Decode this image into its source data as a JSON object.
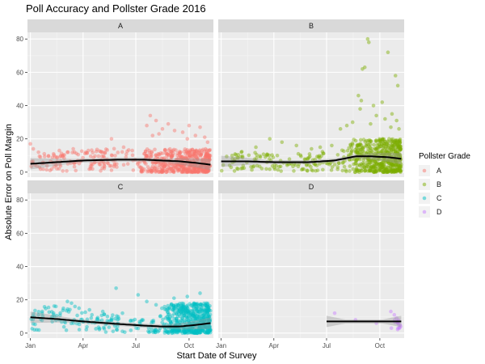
{
  "chart_data": {
    "type": "scatter",
    "title": "Poll Accuracy and Pollster Grade 2016",
    "xlabel": "Start Date of Survey",
    "ylabel": "Absolute Error on Poll Margin",
    "x_range": [
      "2015-12-27",
      "2016-11-12"
    ],
    "x_ticks": [
      {
        "date": "2016-01-01",
        "label": "Jan"
      },
      {
        "date": "2016-04-01",
        "label": "Apr"
      },
      {
        "date": "2016-07-01",
        "label": "Jul"
      },
      {
        "date": "2016-10-01",
        "label": "Oct"
      }
    ],
    "ylim": [
      -3,
      84
    ],
    "y_ticks": [
      0,
      20,
      40,
      60,
      80
    ],
    "y_minor_ticks": [
      10,
      30,
      50,
      70
    ],
    "grid": true,
    "facet_by": "Pollster Grade",
    "legend": {
      "title": "Pollster Grade",
      "position": "right",
      "items": [
        {
          "label": "A",
          "color": "#F8766D"
        },
        {
          "label": "B",
          "color": "#7CAE00"
        },
        {
          "label": "C",
          "color": "#00BFC4"
        },
        {
          "label": "D",
          "color": "#C77CFF"
        }
      ]
    },
    "panels": [
      {
        "label": "A",
        "color": "#F8766D",
        "dense_start": "2016-07-01",
        "dense_end": "2016-11-07",
        "dense_y_typical": [
          0,
          14
        ],
        "smooth": [
          [
            "2016-01-01",
            5
          ],
          [
            "2016-02-15",
            6
          ],
          [
            "2016-04-01",
            7
          ],
          [
            "2016-06-01",
            7.5
          ],
          [
            "2016-07-15",
            7.5
          ],
          [
            "2016-08-15",
            7
          ],
          [
            "2016-09-15",
            6.5
          ],
          [
            "2016-10-15",
            5.5
          ],
          [
            "2016-11-07",
            4.5
          ]
        ],
        "outliers": [
          [
            "2016-01-01",
            17
          ],
          [
            "2016-01-06",
            14
          ],
          [
            "2016-01-15",
            12
          ],
          [
            "2016-01-25",
            11
          ],
          [
            "2016-02-10",
            11
          ],
          [
            "2016-02-20",
            13
          ],
          [
            "2016-03-05",
            12
          ],
          [
            "2016-03-15",
            14
          ],
          [
            "2016-04-10",
            13
          ],
          [
            "2016-05-05",
            12
          ],
          [
            "2016-05-20",
            20
          ],
          [
            "2016-06-10",
            15
          ],
          [
            "2016-06-25",
            13
          ],
          [
            "2016-07-20",
            28
          ],
          [
            "2016-07-26",
            34
          ],
          [
            "2016-08-05",
            31
          ],
          [
            "2016-08-16",
            26
          ],
          [
            "2016-08-26",
            29
          ],
          [
            "2016-09-06",
            25
          ],
          [
            "2016-09-20",
            24
          ],
          [
            "2016-10-01",
            28
          ],
          [
            "2016-10-12",
            22
          ],
          [
            "2016-10-20",
            27
          ],
          [
            "2016-10-28",
            21
          ],
          [
            "2016-11-02",
            18
          ],
          [
            "2016-08-10",
            23
          ],
          [
            "2016-09-28",
            20
          ],
          [
            "2016-07-30",
            22
          ]
        ]
      },
      {
        "label": "B",
        "color": "#7CAE00",
        "dense_start": "2016-08-01",
        "dense_end": "2016-11-07",
        "dense_y_typical": [
          0,
          20
        ],
        "smooth": [
          [
            "2016-01-01",
            6.5
          ],
          [
            "2016-02-15",
            6.5
          ],
          [
            "2016-04-01",
            6
          ],
          [
            "2016-06-01",
            6
          ],
          [
            "2016-07-15",
            7
          ],
          [
            "2016-08-20",
            9.5
          ],
          [
            "2016-09-15",
            9.5
          ],
          [
            "2016-10-15",
            9
          ],
          [
            "2016-11-07",
            8
          ]
        ],
        "outliers": [
          [
            "2016-09-10",
            80
          ],
          [
            "2016-09-12",
            78
          ],
          [
            "2016-10-15",
            72
          ],
          [
            "2016-09-05",
            63
          ],
          [
            "2016-09-01",
            62
          ],
          [
            "2016-10-28",
            58
          ],
          [
            "2016-11-01",
            52
          ],
          [
            "2016-08-25",
            46
          ],
          [
            "2016-08-28",
            38
          ],
          [
            "2016-09-20",
            40
          ],
          [
            "2016-10-05",
            42
          ],
          [
            "2016-08-30",
            43
          ],
          [
            "2016-10-22",
            35
          ],
          [
            "2016-09-25",
            34
          ],
          [
            "2016-10-10",
            32
          ],
          [
            "2016-10-30",
            31
          ],
          [
            "2016-08-15",
            30
          ],
          [
            "2016-09-15",
            29
          ],
          [
            "2016-08-05",
            28
          ],
          [
            "2016-07-25",
            26
          ],
          [
            "2016-10-20",
            27
          ],
          [
            "2016-11-03",
            26
          ],
          [
            "2016-03-25",
            20
          ],
          [
            "2016-04-15",
            18
          ],
          [
            "2016-05-10",
            16
          ],
          [
            "2016-06-05",
            14
          ],
          [
            "2016-03-01",
            15
          ],
          [
            "2016-02-05",
            12
          ],
          [
            "2016-01-20",
            10
          ],
          [
            "2016-06-20",
            15
          ],
          [
            "2016-07-10",
            16
          ]
        ]
      },
      {
        "label": "C",
        "color": "#00BFC4",
        "dense_start": "2016-08-10",
        "dense_end": "2016-11-07",
        "dense_y_typical": [
          0,
          18
        ],
        "smooth": [
          [
            "2016-01-01",
            9.5
          ],
          [
            "2016-02-15",
            8.5
          ],
          [
            "2016-04-01",
            7
          ],
          [
            "2016-06-01",
            5.5
          ],
          [
            "2016-07-15",
            4.5
          ],
          [
            "2016-08-15",
            4
          ],
          [
            "2016-09-15",
            4
          ],
          [
            "2016-10-15",
            5
          ],
          [
            "2016-11-07",
            6
          ]
        ],
        "outliers": [
          [
            "2016-05-28",
            27
          ],
          [
            "2016-03-05",
            19
          ],
          [
            "2016-03-12",
            18
          ],
          [
            "2016-03-18",
            16
          ],
          [
            "2016-03-25",
            15
          ],
          [
            "2016-04-12",
            14
          ],
          [
            "2016-05-05",
            13
          ],
          [
            "2016-06-08",
            12
          ],
          [
            "2016-07-05",
            23
          ],
          [
            "2016-07-20",
            19
          ],
          [
            "2016-08-05",
            17
          ],
          [
            "2016-09-05",
            21
          ],
          [
            "2016-09-28",
            22
          ],
          [
            "2016-10-20",
            24
          ],
          [
            "2016-01-15",
            11
          ],
          [
            "2016-02-10",
            12
          ],
          [
            "2016-01-05",
            10
          ],
          [
            "2016-02-20",
            8
          ],
          [
            "2016-01-08",
            2
          ],
          [
            "2016-01-12",
            2
          ]
        ]
      },
      {
        "label": "D",
        "color": "#C77CFF",
        "dense_start": "2016-10-15",
        "dense_end": "2016-11-07",
        "dense_y_typical": [
          2,
          10
        ],
        "smooth": [
          [
            "2016-07-01",
            7
          ],
          [
            "2016-08-15",
            7
          ],
          [
            "2016-09-15",
            7
          ],
          [
            "2016-10-15",
            7
          ],
          [
            "2016-11-07",
            7
          ]
        ],
        "outliers": [
          [
            "2016-07-15",
            12
          ],
          [
            "2016-08-20",
            8
          ],
          [
            "2016-09-25",
            6
          ],
          [
            "2016-10-20",
            13
          ],
          [
            "2016-10-26",
            11
          ],
          [
            "2016-11-04",
            3
          ],
          [
            "2016-11-05",
            5
          ],
          [
            "2016-10-30",
            9
          ],
          [
            "2016-11-02",
            7
          ],
          [
            "2016-11-06",
            4
          ]
        ]
      }
    ]
  }
}
